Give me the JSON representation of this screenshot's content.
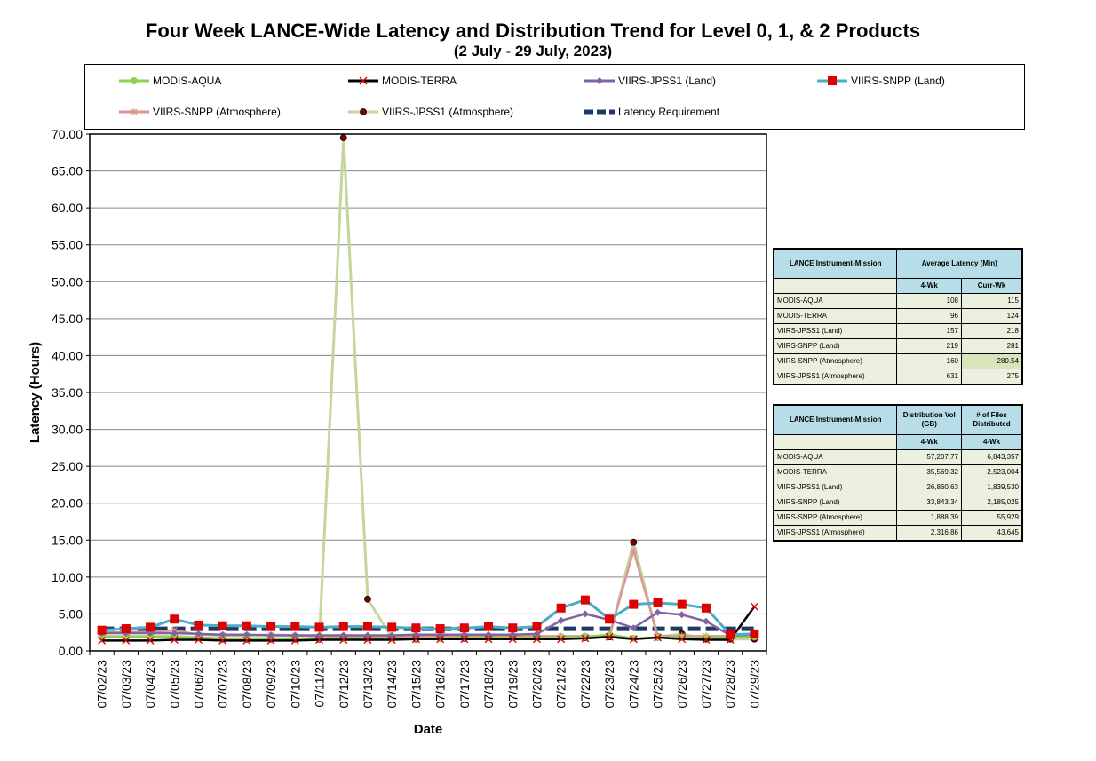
{
  "chart_data": {
    "type": "line",
    "title": "Four Week LANCE-Wide Latency and Distribution Trend for Level 0, 1, & 2 Products",
    "subtitle": "(2  July   -  29  July,  2023)",
    "xlabel": "Date",
    "ylabel": "Latency (Hours)",
    "ylim": [
      0,
      70
    ],
    "yticks": [
      "0.00",
      "5.00",
      "10.00",
      "15.00",
      "20.00",
      "25.00",
      "30.00",
      "35.00",
      "40.00",
      "45.00",
      "50.00",
      "55.00",
      "60.00",
      "65.00",
      "70.00"
    ],
    "grid": true,
    "legend_position": "top",
    "categories": [
      "07/02/23",
      "07/03/23",
      "07/04/23",
      "07/05/23",
      "07/06/23",
      "07/07/23",
      "07/08/23",
      "07/09/23",
      "07/10/23",
      "07/11/23",
      "07/12/23",
      "07/13/23",
      "07/14/23",
      "07/15/23",
      "07/16/23",
      "07/17/23",
      "07/18/23",
      "07/19/23",
      "07/20/23",
      "07/21/23",
      "07/22/23",
      "07/23/23",
      "07/24/23",
      "07/25/23",
      "07/26/23",
      "07/27/23",
      "07/28/23",
      "07/29/23"
    ],
    "series": [
      {
        "name": "MODIS-AQUA",
        "color": "#92d050",
        "marker": "circle",
        "values": [
          1.9,
          1.9,
          1.9,
          1.9,
          1.8,
          1.7,
          1.7,
          1.7,
          1.7,
          1.7,
          1.7,
          1.7,
          1.7,
          1.7,
          1.7,
          1.8,
          1.8,
          1.8,
          1.8,
          1.8,
          1.9,
          2.2,
          1.7,
          1.8,
          1.8,
          1.8,
          1.8,
          1.9
        ]
      },
      {
        "name": "MODIS-TERRA",
        "color": "#000000",
        "marker": "x",
        "values": [
          1.4,
          1.4,
          1.4,
          1.5,
          1.5,
          1.4,
          1.4,
          1.4,
          1.4,
          1.5,
          1.5,
          1.5,
          1.5,
          1.6,
          1.6,
          1.6,
          1.6,
          1.6,
          1.6,
          1.6,
          1.7,
          1.9,
          1.6,
          1.8,
          1.6,
          1.5,
          1.5,
          6.0
        ]
      },
      {
        "name": "VIIRS-JPSS1 (Land)",
        "color": "#8064a2",
        "marker": "diamond",
        "values": [
          2.4,
          2.4,
          2.4,
          2.4,
          2.3,
          2.2,
          2.2,
          2.1,
          2.1,
          2.1,
          2.1,
          2.1,
          2.1,
          2.2,
          2.2,
          2.2,
          2.2,
          2.2,
          2.3,
          4.1,
          5.0,
          4.2,
          3.1,
          5.2,
          4.9,
          4.0,
          2.1,
          2.2
        ]
      },
      {
        "name": "VIIRS-SNPP (Land)",
        "color": "#4bacc6",
        "marker": "square",
        "values": [
          2.8,
          3.0,
          3.2,
          4.3,
          3.5,
          3.4,
          3.4,
          3.3,
          3.3,
          3.2,
          3.3,
          3.3,
          3.2,
          3.1,
          3.0,
          3.1,
          3.3,
          3.1,
          3.3,
          5.8,
          6.9,
          4.3,
          6.3,
          6.5,
          6.3,
          5.8,
          2.2,
          2.3
        ]
      },
      {
        "name": "VIIRS-SNPP (Atmosphere)",
        "color": "#d99694",
        "marker": "star",
        "values": [
          2.5,
          2.5,
          2.6,
          2.8,
          2.2,
          2.1,
          2.1,
          2.2,
          2.1,
          2.0,
          2.0,
          1.9,
          1.9,
          2.0,
          2.0,
          2.0,
          2.0,
          2.0,
          2.0,
          2.0,
          2.0,
          2.0,
          13.6,
          2.0,
          2.0,
          2.0,
          2.0,
          2.0
        ]
      },
      {
        "name": "VIIRS-JPSS1 (Atmosphere)",
        "color": "#c4d79b",
        "marker": "dot",
        "values": [
          2.0,
          2.0,
          2.0,
          2.0,
          1.8,
          1.6,
          1.6,
          1.6,
          1.6,
          1.6,
          69.5,
          7.0,
          1.8,
          1.6,
          1.7,
          1.7,
          1.8,
          1.8,
          1.8,
          1.8,
          1.8,
          1.9,
          14.7,
          1.9,
          2.3,
          1.6,
          1.6,
          1.6
        ]
      },
      {
        "name": "Latency Requirement",
        "color": "#1f3864",
        "marker": "none",
        "dashed": true,
        "values": [
          3,
          3,
          3,
          3,
          3,
          3,
          3,
          3,
          3,
          3,
          3,
          3,
          3,
          3,
          3,
          3,
          3,
          3,
          3,
          3,
          3,
          3,
          3,
          3,
          3,
          3,
          3,
          3
        ]
      }
    ]
  },
  "latency_table": {
    "headers": {
      "col1": "LANCE Instrument-Mission",
      "col2": "Average Latency (Min)",
      "sub1": "4-Wk",
      "sub2": "Curr-Wk"
    },
    "rows": [
      {
        "name": "MODIS-AQUA",
        "a": "108",
        "b": "115"
      },
      {
        "name": "MODIS-TERRA",
        "a": "96",
        "b": "124"
      },
      {
        "name": "VIIRS-JPSS1 (Land)",
        "a": "157",
        "b": "218"
      },
      {
        "name": "VIIRS-SNPP (Land)",
        "a": "219",
        "b": "281"
      },
      {
        "name": "VIIRS-SNPP (Atmosphere)",
        "a": "160",
        "b": "280.54"
      },
      {
        "name": "VIIRS-JPSS1 (Atmosphere)",
        "a": "631",
        "b": "275"
      }
    ]
  },
  "distribution_table": {
    "headers": {
      "col1": "LANCE Instrument-Mission",
      "col2": "Distribution Vol (GB)",
      "col3": "# of Files Distributed",
      "sub1": "4-Wk",
      "sub2": "4-Wk"
    },
    "rows": [
      {
        "name": "MODIS-AQUA",
        "a": "57,207.77",
        "b": "6,843,357"
      },
      {
        "name": "MODIS-TERRA",
        "a": "35,569.32",
        "b": "2,523,004"
      },
      {
        "name": "VIIRS-JPSS1 (Land)",
        "a": "26,860.63",
        "b": "1,839,530"
      },
      {
        "name": "VIIRS-SNPP (Land)",
        "a": "33,843.34",
        "b": "2,185,025"
      },
      {
        "name": "VIIRS-SNPP (Atmosphere)",
        "a": "1,888.39",
        "b": "55,929"
      },
      {
        "name": "VIIRS-JPSS1 (Atmosphere)",
        "a": "2,316.86",
        "b": "43,645"
      }
    ]
  }
}
